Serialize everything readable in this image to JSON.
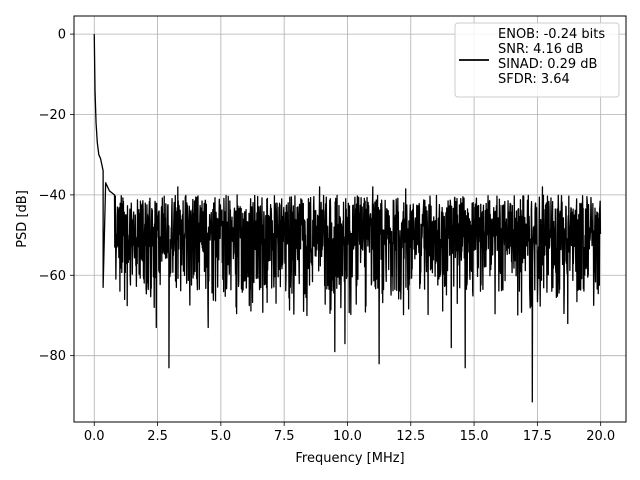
{
  "chart_data": {
    "type": "line",
    "title": "",
    "xlabel": "Frequency [MHz]",
    "ylabel": "PSD [dB]",
    "xlim": [
      -0.8,
      21.0
    ],
    "ylim": [
      -96.5,
      4.5
    ],
    "x_ticks": [
      0,
      2.5,
      5,
      7.5,
      10,
      12.5,
      15,
      17.5,
      20
    ],
    "x_tick_labels": [
      "0.0",
      "2.5",
      "5.0",
      "7.5",
      "10.0",
      "12.5",
      "15.0",
      "17.5",
      "20.0"
    ],
    "y_ticks": [
      0,
      -20,
      -40,
      -60,
      -80
    ],
    "y_tick_labels": [
      "0",
      "−20",
      "−40",
      "−60",
      "−80"
    ],
    "grid": true,
    "legend_position": "top-right",
    "legend": {
      "line_color": "#000000",
      "lines": [
        "ENOB: -0.24 bits",
        "SNR: 4.16 dB",
        "SINAD: 0.29 dB",
        "SFDR: 3.64"
      ]
    },
    "series": [
      {
        "color": "#000000",
        "x_range": [
          0,
          20.0
        ],
        "approx_noise_band_db": [
          -60,
          -40
        ],
        "peak_points": [
          {
            "x": 0.0,
            "y": 0.0
          },
          {
            "x": 0.03,
            "y": -14
          },
          {
            "x": 0.07,
            "y": -22
          },
          {
            "x": 0.12,
            "y": -27
          },
          {
            "x": 0.18,
            "y": -30
          },
          {
            "x": 0.25,
            "y": -31
          },
          {
            "x": 0.35,
            "y": -34
          },
          {
            "x": 0.45,
            "y": -37
          },
          {
            "x": 0.6,
            "y": -39
          },
          {
            "x": 0.8,
            "y": -40
          }
        ],
        "notable_dips": [
          {
            "x": 0.35,
            "y": -63
          },
          {
            "x": 1.2,
            "y": -66
          },
          {
            "x": 2.45,
            "y": -73
          },
          {
            "x": 2.95,
            "y": -83
          },
          {
            "x": 4.5,
            "y": -73
          },
          {
            "x": 8.4,
            "y": -70
          },
          {
            "x": 9.5,
            "y": -79
          },
          {
            "x": 9.9,
            "y": -77
          },
          {
            "x": 11.25,
            "y": -82
          },
          {
            "x": 14.1,
            "y": -78
          },
          {
            "x": 14.65,
            "y": -83
          },
          {
            "x": 17.3,
            "y": -91.5
          },
          {
            "x": 18.7,
            "y": -72
          }
        ],
        "notable_spikes": [
          {
            "x": 3.3,
            "y": -38
          },
          {
            "x": 8.9,
            "y": -38
          },
          {
            "x": 11.0,
            "y": -38
          },
          {
            "x": 12.3,
            "y": -38.5
          },
          {
            "x": 17.7,
            "y": -38
          }
        ]
      }
    ]
  }
}
